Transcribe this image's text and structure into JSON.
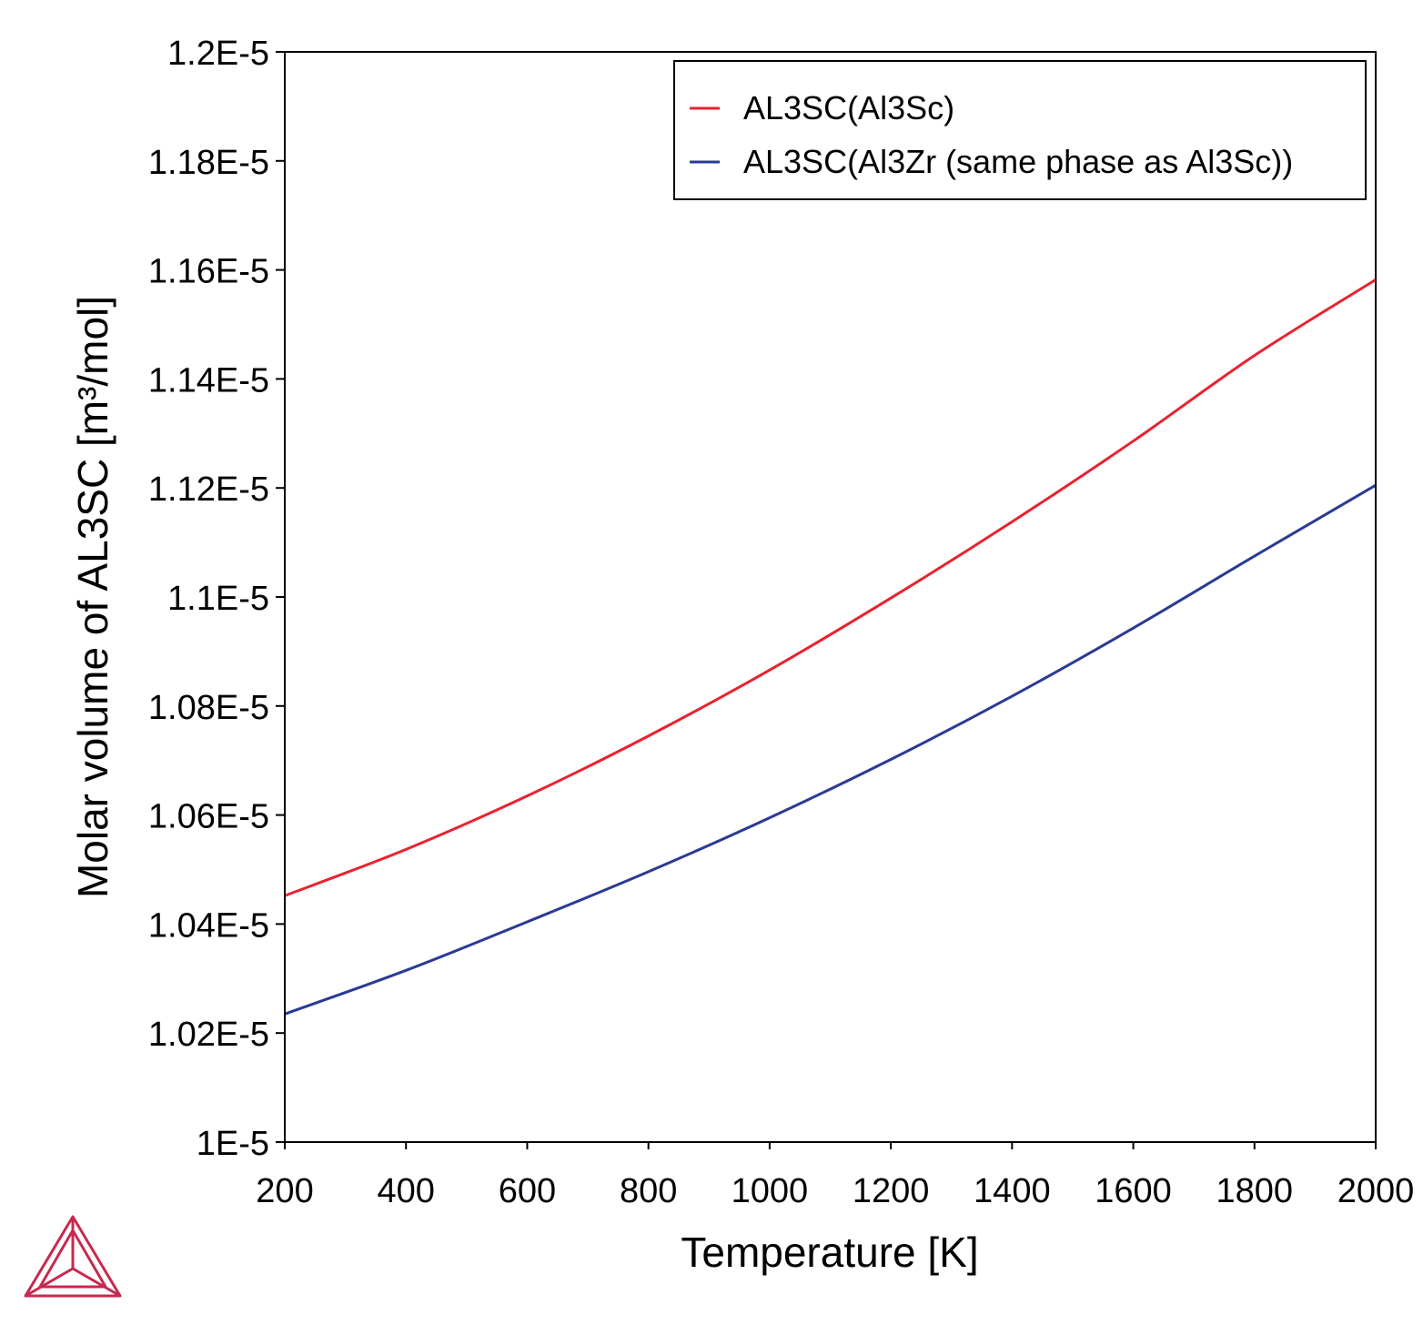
{
  "chart_data": {
    "type": "line",
    "xlabel": "Temperature [K]",
    "ylabel": "Molar volume of AL3SC [m³/mol]",
    "xlim": [
      200,
      2000
    ],
    "ylim": [
      1e-05,
      1.2e-05
    ],
    "x_ticks": [
      200,
      400,
      600,
      800,
      1000,
      1200,
      1400,
      1600,
      1800,
      2000
    ],
    "x_tick_labels": [
      "200",
      "400",
      "600",
      "800",
      "1000",
      "1200",
      "1400",
      "1600",
      "1800",
      "2000"
    ],
    "y_ticks": [
      1e-05,
      1.02e-05,
      1.04e-05,
      1.06e-05,
      1.08e-05,
      1.1e-05,
      1.12e-05,
      1.14e-05,
      1.16e-05,
      1.18e-05,
      1.2e-05
    ],
    "y_tick_labels": [
      "1E-5",
      "1.02E-5",
      "1.04E-5",
      "1.06E-5",
      "1.08E-5",
      "1.1E-5",
      "1.12E-5",
      "1.14E-5",
      "1.16E-5",
      "1.18E-5",
      "1.2E-5"
    ],
    "grid": false,
    "legend_position": "top-right",
    "x": [
      200,
      400,
      600,
      800,
      1000,
      1200,
      1400,
      1600,
      1800,
      2000
    ],
    "series": [
      {
        "name": "AL3SC(Al3Sc)",
        "color": "#e8232f",
        "values": [
          1.0452e-05,
          1.0537e-05,
          1.0635e-05,
          1.0745e-05,
          1.0866e-05,
          1.0998e-05,
          1.1138e-05,
          1.1286e-05,
          1.1443e-05,
          1.1582e-05
        ]
      },
      {
        "name": "AL3SC(Al3Zr (same phase as Al3Sc))",
        "color": "#2a3a95",
        "values": [
          1.0235e-05,
          1.0315e-05,
          1.0404e-05,
          1.0496e-05,
          1.0595e-05,
          1.0702e-05,
          1.0818e-05,
          1.0943e-05,
          1.1075e-05,
          1.1205e-05
        ]
      }
    ]
  },
  "logo": {
    "name": "triangle-logo",
    "color": "#c8294f"
  }
}
